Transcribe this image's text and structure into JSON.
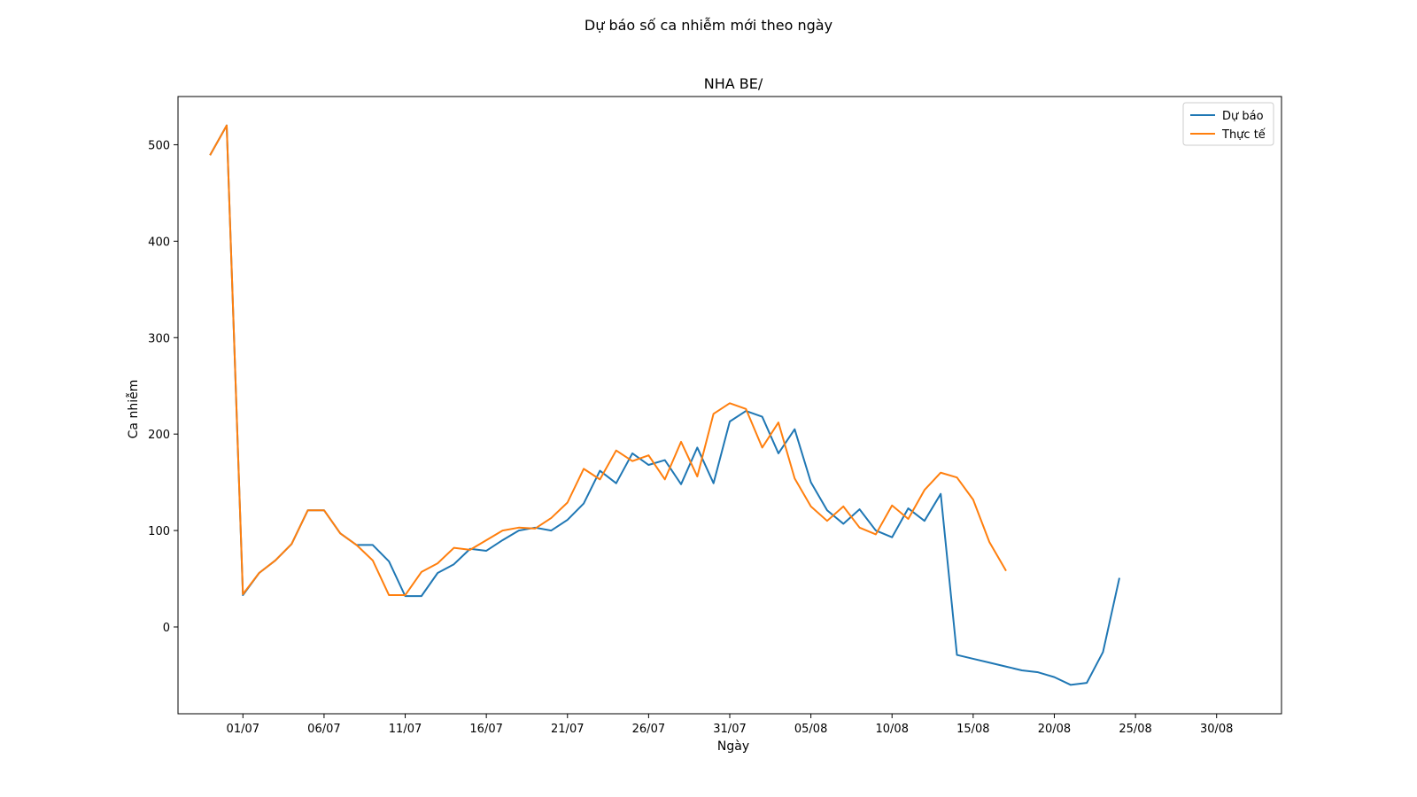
{
  "figure": {
    "suptitle": "Dự báo số ca nhiễm mới theo ngày"
  },
  "chart_data": {
    "type": "line",
    "title": "NHA BE/",
    "xlabel": "Ngày",
    "ylabel": "Ca nhiễm",
    "x_axis": {
      "type": "date",
      "range": [
        "2021-06-27",
        "2021-09-03"
      ],
      "ticks": [
        {
          "date": "2021-07-01",
          "label": "01/07"
        },
        {
          "date": "2021-07-06",
          "label": "06/07"
        },
        {
          "date": "2021-07-11",
          "label": "11/07"
        },
        {
          "date": "2021-07-16",
          "label": "16/07"
        },
        {
          "date": "2021-07-21",
          "label": "21/07"
        },
        {
          "date": "2021-07-26",
          "label": "26/07"
        },
        {
          "date": "2021-07-31",
          "label": "31/07"
        },
        {
          "date": "2021-08-05",
          "label": "05/08"
        },
        {
          "date": "2021-08-10",
          "label": "10/08"
        },
        {
          "date": "2021-08-15",
          "label": "15/08"
        },
        {
          "date": "2021-08-20",
          "label": "20/08"
        },
        {
          "date": "2021-08-25",
          "label": "25/08"
        },
        {
          "date": "2021-08-30",
          "label": "30/08"
        }
      ]
    },
    "y_axis": {
      "range": [
        -90,
        550
      ],
      "ticks": [
        0,
        100,
        200,
        300,
        400,
        500
      ]
    },
    "grid": false,
    "legend": {
      "position": "top-right"
    },
    "series": [
      {
        "name": "Dự báo",
        "color": "#1f77b4",
        "start_date": "2021-06-29",
        "values": [
          490,
          520,
          33,
          56,
          69,
          86,
          121,
          121,
          97,
          85,
          85,
          68,
          32,
          32,
          56,
          65,
          81,
          79,
          90,
          100,
          103,
          100,
          111,
          128,
          162,
          149,
          180,
          168,
          173,
          148,
          186,
          149,
          213,
          224,
          218,
          180,
          205,
          150,
          121,
          107,
          122,
          100,
          93,
          123,
          110,
          138,
          -29,
          -33,
          -37,
          -41,
          -45,
          -47,
          -52,
          -60,
          -58,
          -26,
          50
        ]
      },
      {
        "name": "Thực tế",
        "color": "#ff7f0e",
        "start_date": "2021-06-29",
        "values": [
          490,
          520,
          34,
          56,
          69,
          86,
          121,
          121,
          97,
          85,
          69,
          33,
          33,
          57,
          66,
          82,
          80,
          90,
          100,
          103,
          102,
          113,
          129,
          164,
          153,
          183,
          172,
          178,
          153,
          192,
          156,
          221,
          232,
          226,
          186,
          212,
          154,
          125,
          110,
          125,
          103,
          96,
          126,
          112,
          142,
          160,
          155,
          132,
          88,
          59
        ]
      }
    ]
  }
}
